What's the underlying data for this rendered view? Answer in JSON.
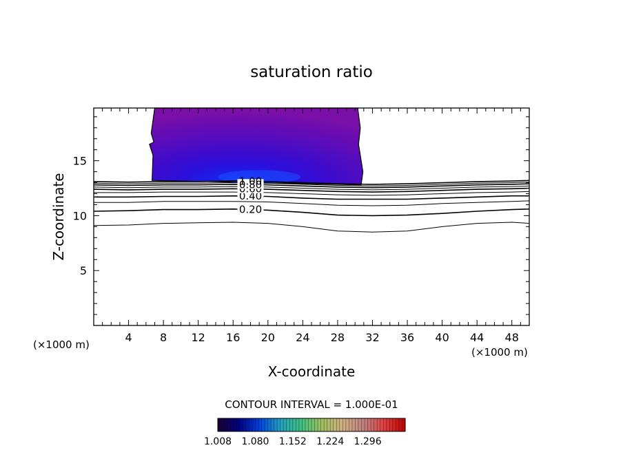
{
  "chart_data": {
    "type": "contour",
    "title": "saturation ratio",
    "xlabel": "X-coordinate",
    "ylabel": "Z-coordinate",
    "x_unit_left": "(×1000 m)",
    "x_unit_right": "(×1000 m)",
    "xlim": [
      0,
      50
    ],
    "ylim": [
      0,
      19.8
    ],
    "x_ticks": [
      4,
      8,
      12,
      16,
      20,
      24,
      28,
      32,
      36,
      40,
      44,
      48
    ],
    "x_tick_labels": [
      "4",
      "8",
      "12",
      "16",
      "20",
      "24",
      "28",
      "32",
      "36",
      "40",
      "44",
      "48"
    ],
    "y_ticks": [
      5,
      10,
      15
    ],
    "y_tick_labels": [
      "5",
      "10",
      "15"
    ],
    "contour_interval_text": "CONTOUR INTERVAL = 1.000E-01",
    "contour_levels": [
      0.1,
      0.2,
      0.3,
      0.4,
      0.5,
      0.6,
      0.7,
      0.8,
      0.9,
      1.0
    ],
    "contour_labels": [
      "0.20",
      "0.40",
      "0.60",
      "0.80",
      "1.00"
    ],
    "contour_lines": [
      {
        "level": 0.1,
        "x": [
          0,
          4,
          8,
          12,
          16,
          20,
          24,
          28,
          32,
          36,
          40,
          44,
          48,
          50
        ],
        "z": [
          9.1,
          9.15,
          9.3,
          9.35,
          9.4,
          9.3,
          9.0,
          8.6,
          8.5,
          8.6,
          9.0,
          9.3,
          9.4,
          9.3
        ]
      },
      {
        "level": 0.2,
        "x": [
          0,
          4,
          8,
          12,
          16,
          20,
          24,
          28,
          32,
          36,
          40,
          44,
          48,
          50
        ],
        "z": [
          10.4,
          10.45,
          10.55,
          10.55,
          10.6,
          10.5,
          10.3,
          10.05,
          10.0,
          10.05,
          10.2,
          10.4,
          10.55,
          10.6
        ]
      },
      {
        "level": 0.3,
        "x": [
          0,
          4,
          8,
          12,
          16,
          20,
          24,
          28,
          32,
          36,
          40,
          44,
          48,
          50
        ],
        "z": [
          11.2,
          11.2,
          11.3,
          11.3,
          11.3,
          11.25,
          11.1,
          10.95,
          10.9,
          10.95,
          11.1,
          11.2,
          11.3,
          11.35
        ]
      },
      {
        "level": 0.4,
        "x": [
          0,
          4,
          8,
          12,
          16,
          20,
          24,
          28,
          32,
          36,
          40,
          44,
          48,
          50
        ],
        "z": [
          11.7,
          11.7,
          11.75,
          11.75,
          11.8,
          11.75,
          11.6,
          11.5,
          11.5,
          11.5,
          11.6,
          11.7,
          11.8,
          11.8
        ]
      },
      {
        "level": 0.5,
        "x": [
          0,
          4,
          8,
          12,
          16,
          20,
          24,
          28,
          32,
          36,
          40,
          44,
          48,
          50
        ],
        "z": [
          12.1,
          12.1,
          12.15,
          12.15,
          12.15,
          12.1,
          12.0,
          11.9,
          11.85,
          11.9,
          12.0,
          12.1,
          12.15,
          12.2
        ]
      },
      {
        "level": 0.6,
        "x": [
          0,
          4,
          8,
          12,
          16,
          20,
          24,
          28,
          32,
          36,
          40,
          44,
          48,
          50
        ],
        "z": [
          12.4,
          12.35,
          12.4,
          12.4,
          12.45,
          12.4,
          12.3,
          12.2,
          12.15,
          12.2,
          12.3,
          12.4,
          12.45,
          12.5
        ]
      },
      {
        "level": 0.7,
        "x": [
          0,
          4,
          8,
          12,
          16,
          20,
          24,
          28,
          32,
          36,
          40,
          44,
          48,
          50
        ],
        "z": [
          12.6,
          12.55,
          12.6,
          12.6,
          12.65,
          12.6,
          12.5,
          12.4,
          12.35,
          12.4,
          12.5,
          12.6,
          12.65,
          12.7
        ]
      },
      {
        "level": 0.8,
        "x": [
          0,
          4,
          8,
          12,
          16,
          20,
          24,
          28,
          32,
          36,
          40,
          44,
          48,
          50
        ],
        "z": [
          12.8,
          12.75,
          12.8,
          12.8,
          12.85,
          12.8,
          12.7,
          12.6,
          12.55,
          12.6,
          12.7,
          12.8,
          12.85,
          12.9
        ]
      },
      {
        "level": 0.9,
        "x": [
          0,
          4,
          8,
          12,
          16,
          20,
          24,
          28,
          32,
          36,
          40,
          44,
          48,
          50
        ],
        "z": [
          12.95,
          12.9,
          12.95,
          12.95,
          13.0,
          12.95,
          12.85,
          12.75,
          12.7,
          12.75,
          12.85,
          12.95,
          13.0,
          13.05
        ]
      },
      {
        "level": 1.0,
        "x": [
          0,
          4,
          8,
          12,
          16,
          20,
          24,
          28,
          32,
          36,
          40,
          44,
          48,
          50
        ],
        "z": [
          13.1,
          13.05,
          13.1,
          13.1,
          13.15,
          13.1,
          13.0,
          12.9,
          12.85,
          12.9,
          13.0,
          13.1,
          13.15,
          13.2
        ]
      }
    ],
    "shaded_region": {
      "description_level": "saturation ratio > 1",
      "outline_x": [
        7.0,
        6.6,
        6.9,
        6.4,
        6.8,
        6.7,
        7.0,
        30.7,
        30.9,
        30.4,
        30.6,
        30.3
      ],
      "outline_z": [
        19.8,
        17.5,
        16.7,
        16.5,
        15.5,
        13.2,
        13.2,
        12.8,
        14.0,
        16.5,
        18.0,
        19.8
      ],
      "max_value_location": {
        "x": 19,
        "z": 13.4
      }
    },
    "colorbar": {
      "min": 1.008,
      "max": 1.368,
      "ticks": [
        1.008,
        1.08,
        1.152,
        1.224,
        1.296
      ],
      "tick_labels": [
        "1.008",
        "1.080",
        "1.152",
        "1.224",
        "1.296"
      ],
      "colors": [
        "#1a0030",
        "#000080",
        "#0040e0",
        "#20a0c0",
        "#40c080",
        "#a0c060",
        "#d0b080",
        "#c08080",
        "#e04040",
        "#c00000"
      ]
    },
    "shade_colors": [
      "#7a10a8",
      "#6a0cb0",
      "#5c0cba",
      "#4a0cc4",
      "#3a0cd0",
      "#2a10dc",
      "#1a20ea",
      "#1040f4"
    ]
  }
}
